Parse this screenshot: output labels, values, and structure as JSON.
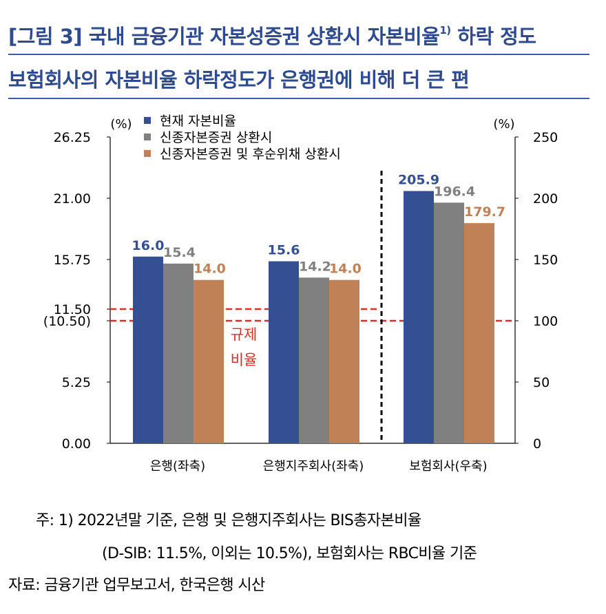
{
  "header": {
    "title_prefix": "[그림 3] 국내 금융기관 자본성증권 상환시 자본비율",
    "title_superscript": "1)",
    "title_suffix": " 하락 정도",
    "subtitle": "보험회사의 자본비율 하락정도가 은행권에 비해 더 큰 편"
  },
  "colors": {
    "title": "#2f4b8f",
    "series": [
      "#344f92",
      "#808080",
      "#bf8155"
    ],
    "threshold": "#d93025",
    "divider": "#000000"
  },
  "chart_data": {
    "type": "bar",
    "categories": [
      "은행(좌축)",
      "은행지주회사(좌축)",
      "보험회사(우축)"
    ],
    "series": [
      {
        "name": "현재 자본비율",
        "values": [
          16.0,
          15.6,
          205.9
        ],
        "labels": [
          "16.0",
          "15.6",
          "205.9"
        ]
      },
      {
        "name": "신종자본증권 상환시",
        "values": [
          15.4,
          14.2,
          196.4
        ],
        "labels": [
          "15.4",
          "14.2",
          "196.4"
        ]
      },
      {
        "name": "신종자본증권 및 후순위채 상환시",
        "values": [
          14.0,
          14.0,
          179.7
        ],
        "labels": [
          "14.0",
          "14.0",
          "179.7"
        ]
      }
    ],
    "category_axis": [
      "left",
      "left",
      "right"
    ],
    "y_left": {
      "unit": "(%)",
      "ylim": [
        0,
        26.25
      ],
      "ticks": [
        0,
        5.25,
        10.5,
        11.5,
        15.75,
        21.0,
        26.25
      ],
      "tick_labels": [
        "0.00",
        "5.25",
        "(10.50)",
        "11.50",
        "15.75",
        "21.00",
        "26.25"
      ]
    },
    "y_right": {
      "unit": "(%)",
      "ylim": [
        0,
        250
      ],
      "ticks": [
        0,
        50,
        100,
        150,
        200,
        250
      ],
      "tick_labels": [
        "0",
        "50",
        "100",
        "150",
        "200",
        "250"
      ]
    },
    "reference_lines": [
      {
        "axis": "left",
        "value": 11.5,
        "style": "dashed",
        "span": "banks"
      },
      {
        "axis": "left",
        "value": 10.5,
        "style": "dashed",
        "span": "full"
      }
    ],
    "reference_label": [
      "규제",
      "비율"
    ],
    "legend": {
      "placement": "top-left"
    },
    "grid": false
  },
  "notes": {
    "line1": "주: 1) 2022년말 기준, 은행 및 은행지주회사는 BIS총자본비율",
    "line2": "(D-SIB: 11.5%, 이외는 10.5%), 보험회사는 RBC비율 기준",
    "line3": "자료: 금융기관 업무보고서, 한국은행 시산"
  }
}
